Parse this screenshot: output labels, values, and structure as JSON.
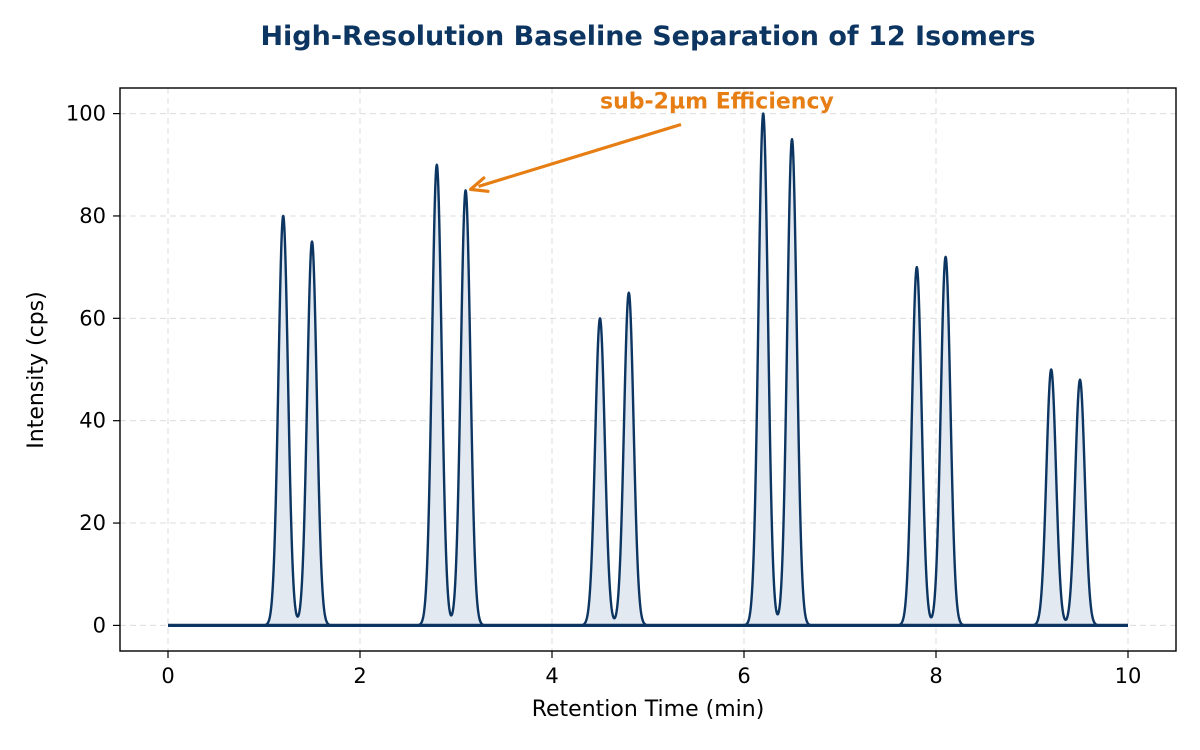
{
  "chart_data": {
    "type": "line",
    "title": "High-Resolution Baseline Separation of 12 Isomers",
    "xlabel": "Retention Time (min)",
    "ylabel": "Intensity (cps)",
    "xlim": [
      -0.5,
      10.5
    ],
    "ylim": [
      -5,
      105
    ],
    "xticks": [
      0,
      2,
      4,
      6,
      8,
      10
    ],
    "yticks": [
      0,
      20,
      40,
      60,
      80,
      100
    ],
    "x_range": [
      0,
      10
    ],
    "grid": true,
    "fill_under": true,
    "peak_width_sigma": 0.05,
    "peaks": [
      {
        "x": 1.2,
        "y": 80
      },
      {
        "x": 1.5,
        "y": 75
      },
      {
        "x": 2.8,
        "y": 90
      },
      {
        "x": 3.1,
        "y": 85
      },
      {
        "x": 4.5,
        "y": 60
      },
      {
        "x": 4.8,
        "y": 65
      },
      {
        "x": 6.2,
        "y": 100
      },
      {
        "x": 6.5,
        "y": 95
      },
      {
        "x": 7.8,
        "y": 70
      },
      {
        "x": 8.1,
        "y": 72
      },
      {
        "x": 9.2,
        "y": 50
      },
      {
        "x": 9.5,
        "y": 48
      }
    ],
    "annotations": [
      {
        "text": "sub-2µm Efficiency",
        "text_x": 4.5,
        "text_y": 101,
        "arrow_to_x": 3.1,
        "arrow_to_y": 85
      }
    ]
  },
  "colors": {
    "line": "#0d3561",
    "fill": "#e3e9f0",
    "title": "#0d3561",
    "annotation": "#e67e14",
    "grid": "#dcdcdc"
  }
}
